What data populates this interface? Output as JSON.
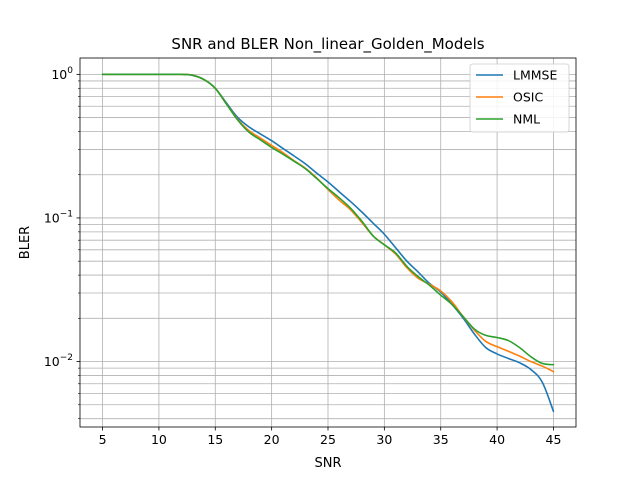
{
  "chart_data": {
    "type": "line",
    "title": "SNR and BLER Non_linear_Golden_Models",
    "xlabel": "SNR",
    "ylabel": "BLER",
    "xlim": [
      3,
      47
    ],
    "ylim": [
      0.0035,
      1.3
    ],
    "yscale": "log",
    "grid": "both (major and minor)",
    "legend_position": "top-right",
    "x_ticks": [
      5,
      10,
      15,
      20,
      25,
      30,
      35,
      40,
      45
    ],
    "x_tick_labels": [
      "5",
      "10",
      "15",
      "20",
      "25",
      "30",
      "35",
      "40",
      "45"
    ],
    "y_tick_labels": [
      {
        "base": "10",
        "exp": "0",
        "value": 1
      },
      {
        "base": "10",
        "exp": "−1",
        "value": 0.1
      },
      {
        "base": "10",
        "exp": "−2",
        "value": 0.01
      }
    ],
    "x": [
      5,
      7,
      9,
      11,
      12,
      13,
      14,
      15,
      16,
      17,
      18,
      19,
      20,
      21,
      22,
      23,
      24,
      25,
      26,
      27,
      28,
      29,
      30,
      31,
      32,
      33,
      34,
      35,
      36,
      37,
      38,
      39,
      40,
      41,
      42,
      43,
      44,
      45
    ],
    "series": [
      {
        "name": "LMMSE",
        "color": "#1f77b4",
        "values": [
          1.0,
          1.0,
          1.0,
          1.0,
          1.0,
          0.985,
          0.92,
          0.8,
          0.63,
          0.5,
          0.43,
          0.385,
          0.345,
          0.305,
          0.27,
          0.238,
          0.205,
          0.178,
          0.152,
          0.13,
          0.11,
          0.092,
          0.077,
          0.062,
          0.05,
          0.042,
          0.035,
          0.0305,
          0.025,
          0.02,
          0.0155,
          0.0125,
          0.0113,
          0.0105,
          0.0098,
          0.0088,
          0.0072,
          0.0045
        ]
      },
      {
        "name": "OSIC",
        "color": "#ff7f0e",
        "values": [
          1.0,
          1.0,
          1.0,
          1.0,
          1.0,
          0.985,
          0.92,
          0.8,
          0.62,
          0.485,
          0.405,
          0.36,
          0.32,
          0.285,
          0.25,
          0.222,
          0.19,
          0.158,
          0.133,
          0.114,
          0.093,
          0.075,
          0.065,
          0.056,
          0.045,
          0.038,
          0.0345,
          0.031,
          0.026,
          0.0205,
          0.0165,
          0.0138,
          0.0127,
          0.0118,
          0.0109,
          0.01,
          0.0093,
          0.0085
        ]
      },
      {
        "name": "NML",
        "color": "#2ca02c",
        "values": [
          1.0,
          1.0,
          1.0,
          1.0,
          1.0,
          0.985,
          0.92,
          0.8,
          0.62,
          0.48,
          0.395,
          0.35,
          0.31,
          0.278,
          0.248,
          0.22,
          0.188,
          0.16,
          0.138,
          0.117,
          0.095,
          0.075,
          0.065,
          0.057,
          0.046,
          0.039,
          0.034,
          0.029,
          0.025,
          0.0205,
          0.0168,
          0.0152,
          0.0147,
          0.014,
          0.0125,
          0.0108,
          0.0097,
          0.0095
        ]
      }
    ]
  }
}
